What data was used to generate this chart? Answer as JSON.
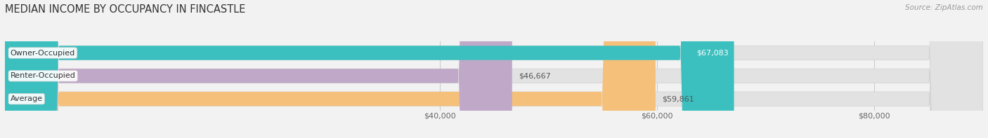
{
  "title": "MEDIAN INCOME BY OCCUPANCY IN FINCASTLE",
  "source": "Source: ZipAtlas.com",
  "categories": [
    "Average",
    "Renter-Occupied",
    "Owner-Occupied"
  ],
  "values": [
    59861,
    46667,
    67083
  ],
  "colors": [
    "#f5c07a",
    "#c0a8c8",
    "#3bbfbf"
  ],
  "value_labels": [
    "$59,861",
    "$46,667",
    "$67,083"
  ],
  "value_label_colors": [
    "#555555",
    "#555555",
    "#ffffff"
  ],
  "value_inside": [
    false,
    false,
    true
  ],
  "xmin": 0,
  "xmax": 90000,
  "x_axis_start": 0,
  "xticks": [
    40000,
    60000,
    80000
  ],
  "xtick_labels": [
    "$40,000",
    "$60,000",
    "$80,000"
  ],
  "bar_height": 0.62,
  "background_color": "#f2f2f2",
  "bar_bg_color": "#e2e2e2",
  "title_fontsize": 10.5,
  "label_fontsize": 8,
  "value_fontsize": 8,
  "source_fontsize": 7.5
}
